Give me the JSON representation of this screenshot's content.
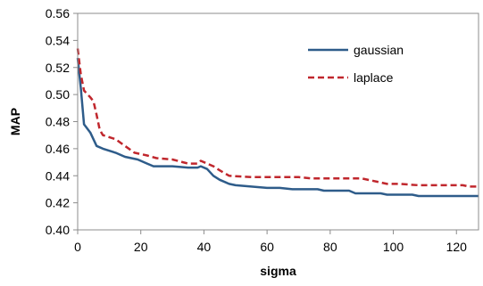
{
  "chart_data": {
    "type": "line",
    "title": "",
    "xlabel": "sigma",
    "ylabel": "MAP",
    "xlim": [
      0,
      127
    ],
    "ylim": [
      0.4,
      0.56
    ],
    "xticks": [
      0,
      20,
      40,
      60,
      80,
      100,
      120
    ],
    "yticks": [
      0.4,
      0.42,
      0.44,
      0.46,
      0.48,
      0.5,
      0.52,
      0.54,
      0.56
    ],
    "xtick_labels": [
      "0",
      "20",
      "40",
      "60",
      "80",
      "100",
      "120"
    ],
    "ytick_labels": [
      "0.40",
      "0.42",
      "0.44",
      "0.46",
      "0.48",
      "0.50",
      "0.52",
      "0.54",
      "0.56"
    ],
    "grid": false,
    "legend_position": "top-right",
    "series": [
      {
        "name": "gaussian",
        "color": "#2e5c8a",
        "style": "solid",
        "x": [
          0,
          1,
          2,
          4,
          6,
          8,
          12,
          15,
          19,
          22,
          24,
          26,
          30,
          35,
          38,
          39,
          41,
          43,
          45,
          48,
          50,
          55,
          60,
          64,
          68,
          70,
          74,
          76,
          78,
          82,
          86,
          88,
          92,
          96,
          98,
          102,
          106,
          108,
          112,
          116,
          118,
          122,
          127
        ],
        "y": [
          0.527,
          0.505,
          0.478,
          0.472,
          0.462,
          0.46,
          0.457,
          0.454,
          0.452,
          0.449,
          0.447,
          0.447,
          0.447,
          0.446,
          0.446,
          0.447,
          0.445,
          0.44,
          0.437,
          0.434,
          0.433,
          0.432,
          0.431,
          0.431,
          0.43,
          0.43,
          0.43,
          0.43,
          0.429,
          0.429,
          0.429,
          0.427,
          0.427,
          0.427,
          0.426,
          0.426,
          0.426,
          0.425,
          0.425,
          0.425,
          0.425,
          0.425,
          0.425
        ]
      },
      {
        "name": "laplace",
        "color": "#c0272d",
        "style": "dashed",
        "x": [
          0,
          1,
          2,
          4,
          5,
          6,
          7,
          8,
          12,
          15,
          18,
          22,
          25,
          30,
          35,
          38,
          39,
          41,
          43,
          45,
          48,
          55,
          60,
          64,
          70,
          74,
          78,
          82,
          88,
          90,
          96,
          98,
          102,
          108,
          112,
          118,
          122,
          124,
          127
        ],
        "y": [
          0.534,
          0.515,
          0.503,
          0.498,
          0.495,
          0.485,
          0.474,
          0.47,
          0.467,
          0.462,
          0.457,
          0.455,
          0.453,
          0.452,
          0.449,
          0.449,
          0.451,
          0.449,
          0.447,
          0.444,
          0.44,
          0.439,
          0.439,
          0.439,
          0.439,
          0.438,
          0.438,
          0.438,
          0.438,
          0.438,
          0.435,
          0.434,
          0.434,
          0.433,
          0.433,
          0.433,
          0.433,
          0.432,
          0.432
        ]
      }
    ]
  }
}
